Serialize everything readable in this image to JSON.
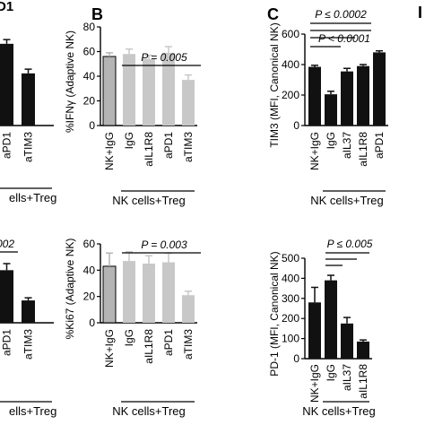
{
  "colors": {
    "black": "#111111",
    "gray": "#c8c8c8",
    "nk_control": "#b4b4b4",
    "axis": "#000000"
  },
  "chart_data": [
    {
      "id": "A_top",
      "type": "bar",
      "panel_letter": "",
      "categories": [
        "aPD1",
        "aTIM3"
      ],
      "values": [
        58,
        37
      ],
      "errors": [
        3,
        3
      ],
      "bar_color": "#111111",
      "ylim": [
        0,
        70
      ],
      "group_label": "ells+Treg",
      "annotation": ""
    },
    {
      "id": "B_top",
      "type": "bar",
      "panel_letter": "B",
      "categories": [
        "NK+IgG",
        "IgG",
        "aIL1R8",
        "aPD1",
        "aTIM3"
      ],
      "values": [
        56,
        58,
        54,
        59,
        37
      ],
      "errors": [
        3,
        4,
        3,
        5,
        4
      ],
      "bar_colors": [
        "#b4b4b4",
        "#c8c8c8",
        "#c8c8c8",
        "#c8c8c8",
        "#c8c8c8"
      ],
      "ylabel": "%IFNγ (Adaptive NK)",
      "ylim": [
        0,
        80
      ],
      "yticks": [
        0,
        20,
        40,
        60,
        80
      ],
      "group_label": "NK cells+Treg",
      "annotation": "P = 0.005"
    },
    {
      "id": "C_top",
      "type": "bar",
      "panel_letter": "C",
      "categories": [
        "NK+IgG",
        "IgG",
        "aIL37",
        "aIL1R8",
        "aPD1"
      ],
      "values": [
        385,
        205,
        355,
        390,
        480
      ],
      "errors": [
        10,
        20,
        20,
        10,
        10
      ],
      "bar_color": "#111111",
      "ylabel": "TIM3 (MFI, Canonical NK)",
      "ylim": [
        0,
        600
      ],
      "yticks": [
        0,
        200,
        400,
        600
      ],
      "group_label": "NK cells+Treg",
      "annotations": [
        "P ≤ 0.0002",
        "P < 0.0001"
      ]
    },
    {
      "id": "A_bottom",
      "type": "bar",
      "panel_letter": "",
      "categories": [
        "aPD1",
        "aTIM3"
      ],
      "values": [
        40,
        17
      ],
      "errors": [
        5,
        2
      ],
      "bar_color": "#111111",
      "ylim": [
        0,
        60
      ],
      "group_label": "ells+Treg",
      "annotation": "002"
    },
    {
      "id": "B_bottom",
      "type": "bar",
      "panel_letter": "",
      "categories": [
        "NK+IgG",
        "IgG",
        "aIL1R8",
        "aPD1",
        "aTIM3"
      ],
      "values": [
        43,
        47,
        45,
        46,
        21
      ],
      "errors": [
        10,
        7,
        6,
        7,
        3
      ],
      "bar_colors": [
        "#b4b4b4",
        "#c8c8c8",
        "#c8c8c8",
        "#c8c8c8",
        "#c8c8c8"
      ],
      "ylabel": "%Ki67 (Adaptive NK)",
      "ylim": [
        0,
        60
      ],
      "yticks": [
        0,
        20,
        40,
        60
      ],
      "group_label": "NK cells+Treg",
      "annotation": "P = 0.003"
    },
    {
      "id": "C_bottom",
      "type": "bar",
      "panel_letter": "",
      "categories": [
        "NK+IgG",
        "IgG",
        "aIL37",
        "aIL1R8"
      ],
      "values": [
        280,
        390,
        175,
        85
      ],
      "errors": [
        75,
        25,
        30,
        8
      ],
      "bar_color": "#111111",
      "ylabel": "PD-1 (MFI, Canonical NK)",
      "ylim": [
        0,
        500
      ],
      "yticks": [
        0,
        100,
        200,
        300,
        400,
        500
      ],
      "group_label": "NK cells+Treg",
      "annotation": "P ≤ 0.005"
    }
  ],
  "extra": {
    "right_edge_letter": "I",
    "left_top_fragment": "D1"
  }
}
